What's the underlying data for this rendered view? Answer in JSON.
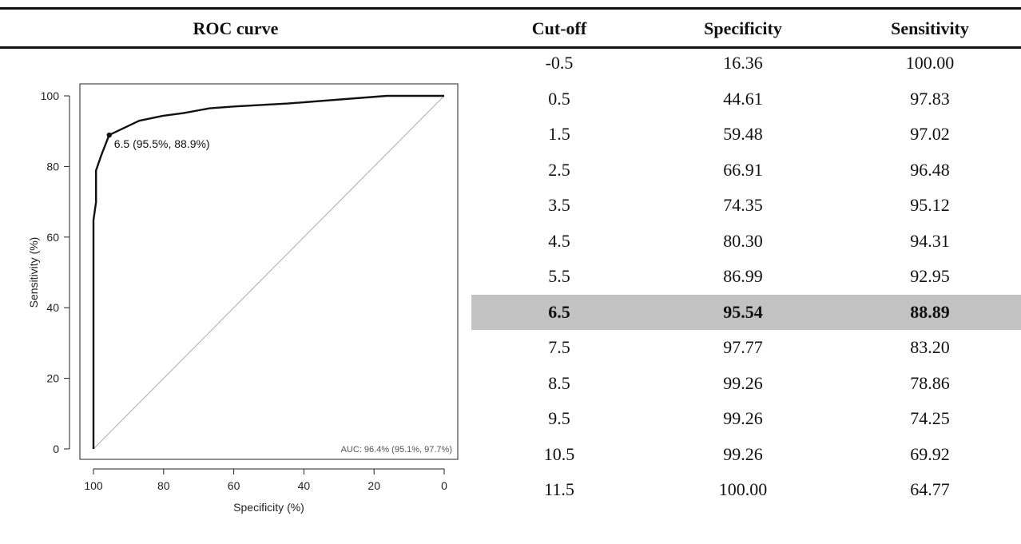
{
  "table": {
    "headers": [
      "ROC curve",
      "Cut-off",
      "Specificity",
      "Sensitivity"
    ],
    "highlight_color": "#c2c2c2",
    "rows": [
      {
        "cutoff": "-0.5",
        "specificity": "16.36",
        "sensitivity": "100.00",
        "highlight": false
      },
      {
        "cutoff": "0.5",
        "specificity": "44.61",
        "sensitivity": "97.83",
        "highlight": false
      },
      {
        "cutoff": "1.5",
        "specificity": "59.48",
        "sensitivity": "97.02",
        "highlight": false
      },
      {
        "cutoff": "2.5",
        "specificity": "66.91",
        "sensitivity": "96.48",
        "highlight": false
      },
      {
        "cutoff": "3.5",
        "specificity": "74.35",
        "sensitivity": "95.12",
        "highlight": false
      },
      {
        "cutoff": "4.5",
        "specificity": "80.30",
        "sensitivity": "94.31",
        "highlight": false
      },
      {
        "cutoff": "5.5",
        "specificity": "86.99",
        "sensitivity": "92.95",
        "highlight": false
      },
      {
        "cutoff": "6.5",
        "specificity": "95.54",
        "sensitivity": "88.89",
        "highlight": true
      },
      {
        "cutoff": "7.5",
        "specificity": "97.77",
        "sensitivity": "83.20",
        "highlight": false
      },
      {
        "cutoff": "8.5",
        "specificity": "99.26",
        "sensitivity": "78.86",
        "highlight": false
      },
      {
        "cutoff": "9.5",
        "specificity": "99.26",
        "sensitivity": "74.25",
        "highlight": false
      },
      {
        "cutoff": "10.5",
        "specificity": "99.26",
        "sensitivity": "69.92",
        "highlight": false
      },
      {
        "cutoff": "11.5",
        "specificity": "100.00",
        "sensitivity": "64.77",
        "highlight": false
      }
    ]
  },
  "chart_data": {
    "type": "line",
    "title": "",
    "xlabel": "Specificity (%)",
    "ylabel": "Sensitivity (%)",
    "xlim": [
      100,
      0
    ],
    "ylim": [
      0,
      100
    ],
    "x_reversed": true,
    "xticks": [
      100,
      80,
      60,
      40,
      20,
      0
    ],
    "yticks": [
      0,
      20,
      40,
      60,
      80,
      100
    ],
    "grid": false,
    "series": [
      {
        "specificity": [
          100,
          100,
          100,
          99.26,
          99.26,
          99.26,
          97.77,
          95.54,
          86.99,
          80.3,
          74.35,
          66.91,
          59.48,
          44.61,
          16.36,
          0
        ],
        "sensitivity": [
          0,
          64.77,
          64.77,
          69.92,
          74.25,
          78.86,
          83.2,
          88.89,
          92.95,
          94.31,
          95.12,
          96.48,
          97.02,
          97.83,
          100,
          100
        ]
      }
    ],
    "reference_line": {
      "from": [
        100,
        0
      ],
      "to": [
        0,
        100
      ],
      "color": "#aaaaaa"
    },
    "highlight_point": {
      "specificity": 95.5,
      "sensitivity": 88.9,
      "label": "6.5 (95.5%, 88.9%)"
    },
    "annotation": "AUC: 96.4% (95.1%, 97.7%)"
  }
}
